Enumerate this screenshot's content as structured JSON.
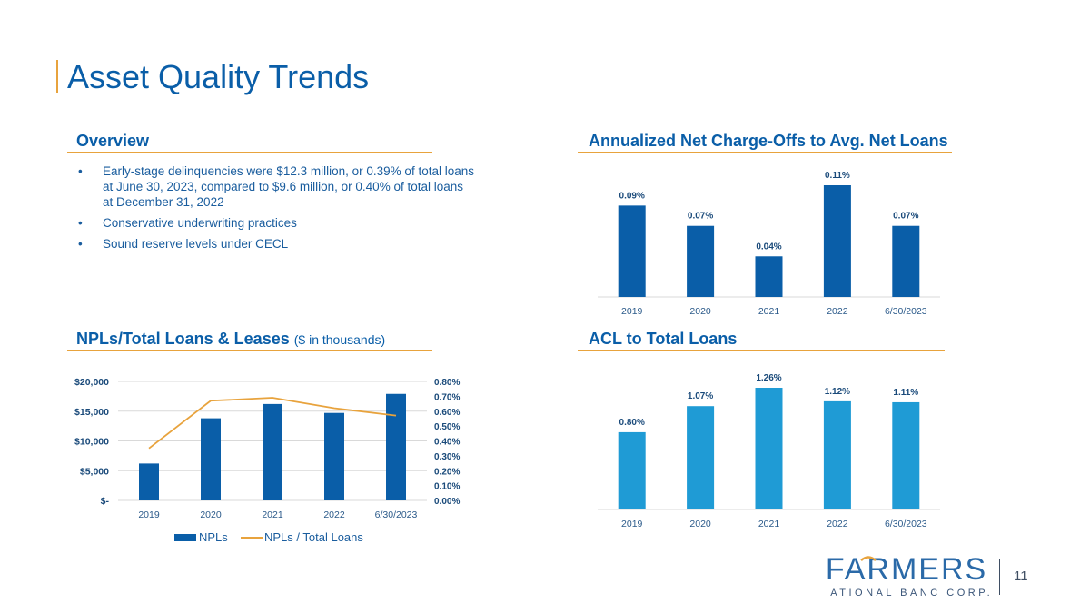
{
  "page": {
    "title": "Asset Quality Trends",
    "page_number": "11"
  },
  "overview": {
    "heading": "Overview",
    "bullets": [
      "Early-stage delinquencies were $12.3 million, or 0.39% of total loans at June 30, 2023, compared to $9.6 million, or 0.40% of total loans at December 31, 2022",
      "Conservative underwriting practices",
      "Sound reserve levels under CECL"
    ]
  },
  "sections": {
    "nco_heading": "Annualized Net Charge-Offs to Avg. Net Loans",
    "npl_heading": "NPLs/Total Loans & Leases",
    "npl_heading_sub": "($ in thousands)",
    "acl_heading": "ACL to Total Loans"
  },
  "logo": {
    "name": "FARMERS",
    "tagline": "NATIONAL BANC CORP."
  },
  "colors": {
    "brand_blue": "#0a5ea8",
    "accent_gold": "#e8a33d",
    "light_blue": "#1f9bd5",
    "grid": "#d9d9d9"
  },
  "chart_data": [
    {
      "id": "nco",
      "type": "bar",
      "title": "Annualized Net Charge-Offs to Avg. Net Loans",
      "categories": [
        "2019",
        "2020",
        "2021",
        "2022",
        "6/30/2023"
      ],
      "values": [
        0.09,
        0.07,
        0.04,
        0.11,
        0.07
      ],
      "labels": [
        "0.09%",
        "0.07%",
        "0.04%",
        "0.11%",
        "0.07%"
      ],
      "ylim": [
        0,
        0.11
      ],
      "color": "#0a5ea8",
      "grid": false
    },
    {
      "id": "acl",
      "type": "bar",
      "title": "ACL to Total Loans",
      "categories": [
        "2019",
        "2020",
        "2021",
        "2022",
        "6/30/2023"
      ],
      "values": [
        0.8,
        1.07,
        1.26,
        1.12,
        1.11
      ],
      "labels": [
        "0.80%",
        "1.07%",
        "1.26%",
        "1.12%",
        "1.11%"
      ],
      "ylim": [
        0,
        1.26
      ],
      "color": "#1f9bd5",
      "grid": false
    },
    {
      "id": "npl",
      "type": "bar",
      "title": "NPLs/Total Loans & Leases",
      "categories": [
        "2019",
        "2020",
        "2021",
        "2022",
        "6/30/2023"
      ],
      "series": [
        {
          "name": "NPLs",
          "type": "bar",
          "axis": "left",
          "values": [
            6200,
            13800,
            16200,
            14700,
            17900
          ],
          "color": "#0a5ea8"
        },
        {
          "name": "NPLs / Total Loans",
          "type": "line",
          "axis": "right",
          "values": [
            0.35,
            0.67,
            0.69,
            0.62,
            0.57
          ],
          "color": "#e8a33d"
        }
      ],
      "y_left": {
        "ylim": [
          0,
          20000
        ],
        "ticks": [
          0,
          5000,
          10000,
          15000,
          20000
        ],
        "tick_labels": [
          "$-",
          "$5,000",
          "$10,000",
          "$15,000",
          "$20,000"
        ]
      },
      "y_right": {
        "ylim": [
          0,
          0.8
        ],
        "ticks": [
          0,
          0.1,
          0.2,
          0.3,
          0.4,
          0.5,
          0.6,
          0.7,
          0.8
        ],
        "tick_labels": [
          "0.00%",
          "0.10%",
          "0.20%",
          "0.30%",
          "0.40%",
          "0.50%",
          "0.60%",
          "0.70%",
          "0.80%"
        ]
      },
      "legend": "bottom",
      "grid": true
    }
  ]
}
